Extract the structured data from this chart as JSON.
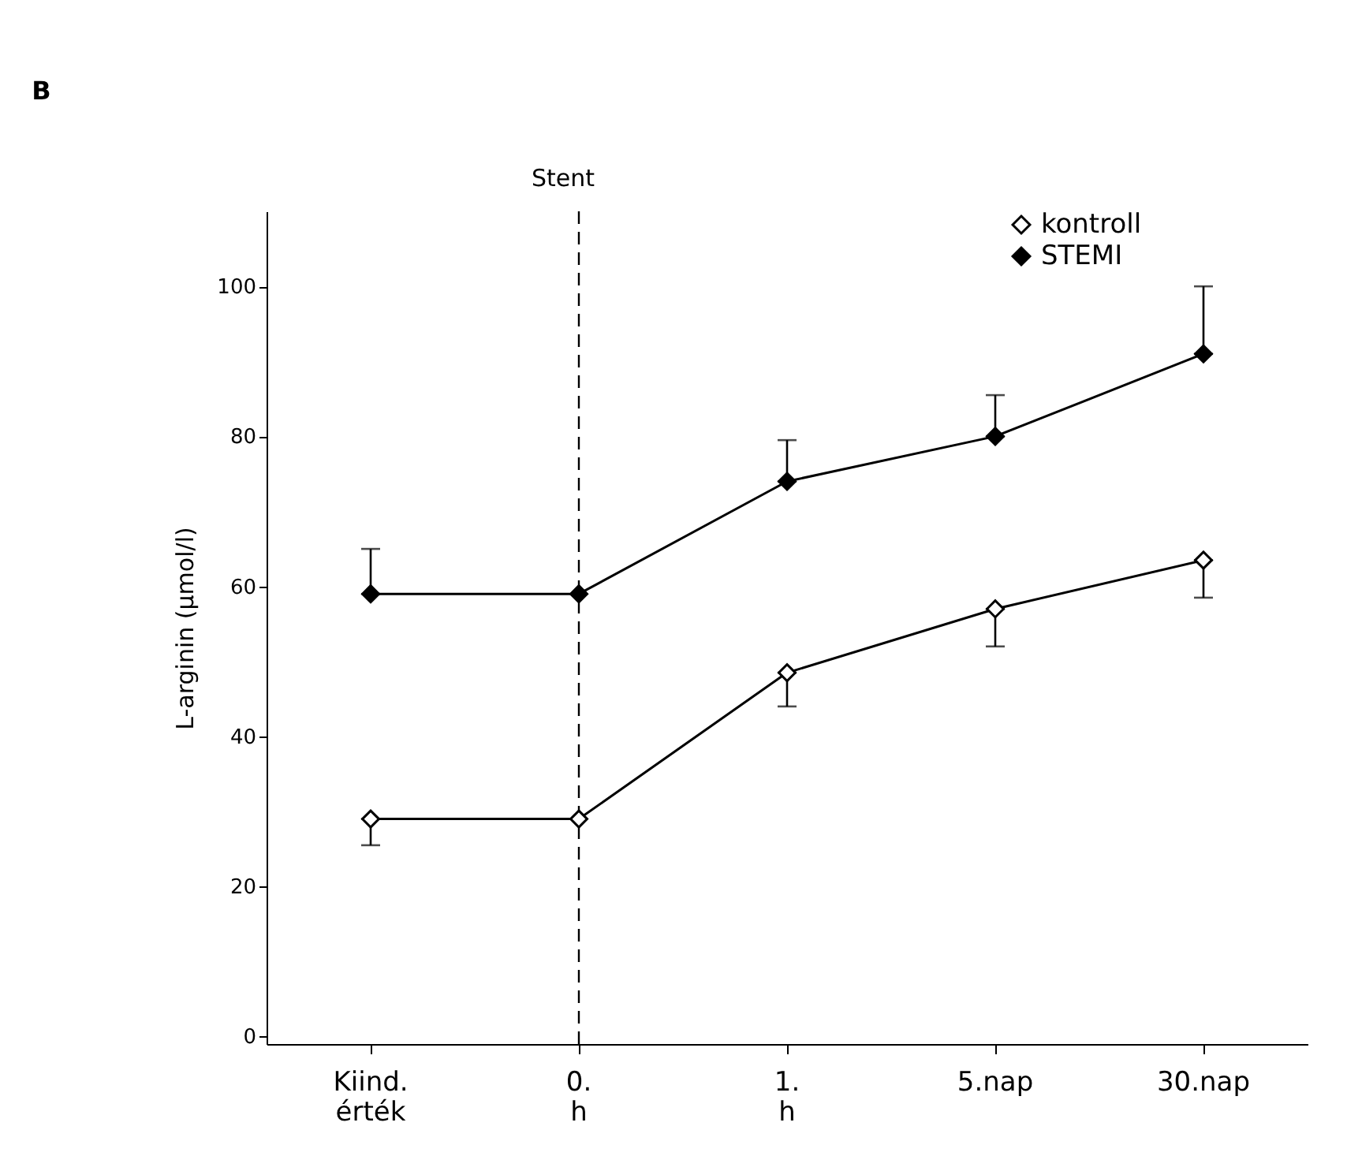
{
  "chart_data": {
    "type": "line",
    "title": "B",
    "ylabel": "L-arginin  (µmol/l)",
    "categories": [
      "Kiind. érték",
      "0. h",
      "1. h",
      "5.nap",
      "30.nap"
    ],
    "series": [
      {
        "name": "kontroll",
        "color": "#ffffff",
        "values": [
          29,
          29,
          48.5,
          57,
          63.5
        ],
        "errors": [
          [
            25.5,
            29
          ],
          null,
          [
            44,
            48.5
          ],
          [
            52,
            57
          ],
          [
            58.5,
            63.5
          ]
        ]
      },
      {
        "name": "STEMI",
        "color": "#000000",
        "values": [
          59,
          59,
          74,
          80,
          91
        ],
        "errors": [
          [
            59,
            65
          ],
          null,
          [
            74,
            79.5
          ],
          [
            80,
            85.5
          ],
          [
            91,
            100
          ]
        ]
      }
    ],
    "ylim": [
      -1,
      110
    ],
    "yticks": [
      0,
      20,
      40,
      60,
      80,
      100
    ],
    "grid": false,
    "legend": "top right",
    "marker": "diamond",
    "line_style": "solid",
    "ref_lines": [
      {
        "axis": "x",
        "value": "0. h",
        "label": "Stent",
        "line_style": "dashed",
        "color": "#000000"
      }
    ]
  }
}
